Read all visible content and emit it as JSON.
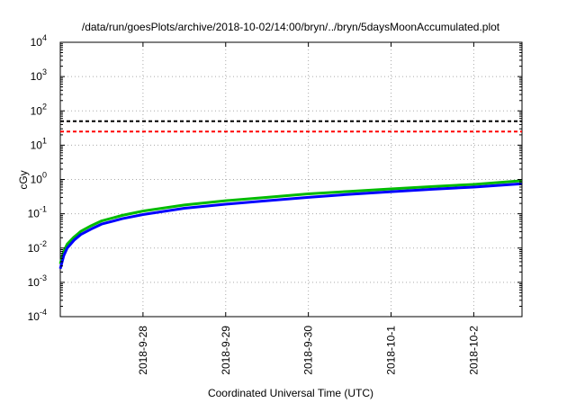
{
  "chart_data": {
    "type": "line",
    "title": "/data/run/goesPlots/archive/2018-10-02/14:00/bryn/../bryn/5daysMoonAccumulated.plot",
    "xlabel": "Coordinated Universal Time (UTC)",
    "ylabel": "cGy",
    "y_scale": "log",
    "ylim": [
      0.0001,
      10000
    ],
    "xlim": [
      "2018-09-27 00:00",
      "2018-10-02 14:00"
    ],
    "x_ticks": [
      "2018-9-28",
      "2018-9-29",
      "2018-9-30",
      "2018-10-1",
      "2018-10-2"
    ],
    "y_ticks": [
      {
        "base": "10",
        "exp": "4",
        "value": 10000
      },
      {
        "base": "10",
        "exp": "3",
        "value": 1000
      },
      {
        "base": "10",
        "exp": "2",
        "value": 100
      },
      {
        "base": "10",
        "exp": "1",
        "value": 10
      },
      {
        "base": "10",
        "exp": "0",
        "value": 1
      },
      {
        "base": "10",
        "exp": "-1",
        "value": 0.1
      },
      {
        "base": "10",
        "exp": "-2",
        "value": 0.01
      },
      {
        "base": "10",
        "exp": "-3",
        "value": 0.001
      },
      {
        "base": "10",
        "exp": "-4",
        "value": 0.0001
      }
    ],
    "grid": true,
    "reference_lines": [
      {
        "y": 50,
        "color": "#000000",
        "style": "dashed"
      },
      {
        "y": 25,
        "color": "#ff0000",
        "style": "dashed"
      }
    ],
    "series": [
      {
        "color": "#00bb00",
        "points": [
          [
            "2018-09-27 00:00",
            0.0035
          ],
          [
            "2018-09-27 01:00",
            0.008
          ],
          [
            "2018-09-27 02:00",
            0.013
          ],
          [
            "2018-09-27 04:00",
            0.021
          ],
          [
            "2018-09-27 06:00",
            0.031
          ],
          [
            "2018-09-27 09:00",
            0.045
          ],
          [
            "2018-09-27 12:00",
            0.062
          ],
          [
            "2018-09-27 18:00",
            0.09
          ],
          [
            "2018-09-28 00:00",
            0.12
          ],
          [
            "2018-09-28 12:00",
            0.18
          ],
          [
            "2018-09-29 00:00",
            0.24
          ],
          [
            "2018-09-29 12:00",
            0.3
          ],
          [
            "2018-09-30 00:00",
            0.38
          ],
          [
            "2018-09-30 12:00",
            0.45
          ],
          [
            "2018-10-01 00:00",
            0.53
          ],
          [
            "2018-10-01 12:00",
            0.62
          ],
          [
            "2018-10-02 00:00",
            0.72
          ],
          [
            "2018-10-02 14:00",
            0.92
          ]
        ]
      },
      {
        "color": "#0000ff",
        "points": [
          [
            "2018-09-27 00:00",
            0.0025
          ],
          [
            "2018-09-27 01:00",
            0.006
          ],
          [
            "2018-09-27 02:00",
            0.01
          ],
          [
            "2018-09-27 04:00",
            0.017
          ],
          [
            "2018-09-27 06:00",
            0.025
          ],
          [
            "2018-09-27 09:00",
            0.036
          ],
          [
            "2018-09-27 12:00",
            0.05
          ],
          [
            "2018-09-27 18:00",
            0.072
          ],
          [
            "2018-09-28 00:00",
            0.095
          ],
          [
            "2018-09-28 12:00",
            0.145
          ],
          [
            "2018-09-29 00:00",
            0.19
          ],
          [
            "2018-09-29 12:00",
            0.24
          ],
          [
            "2018-09-30 00:00",
            0.3
          ],
          [
            "2018-09-30 12:00",
            0.37
          ],
          [
            "2018-10-01 00:00",
            0.44
          ],
          [
            "2018-10-01 12:00",
            0.52
          ],
          [
            "2018-10-02 00:00",
            0.6
          ],
          [
            "2018-10-02 14:00",
            0.75
          ]
        ]
      }
    ]
  }
}
